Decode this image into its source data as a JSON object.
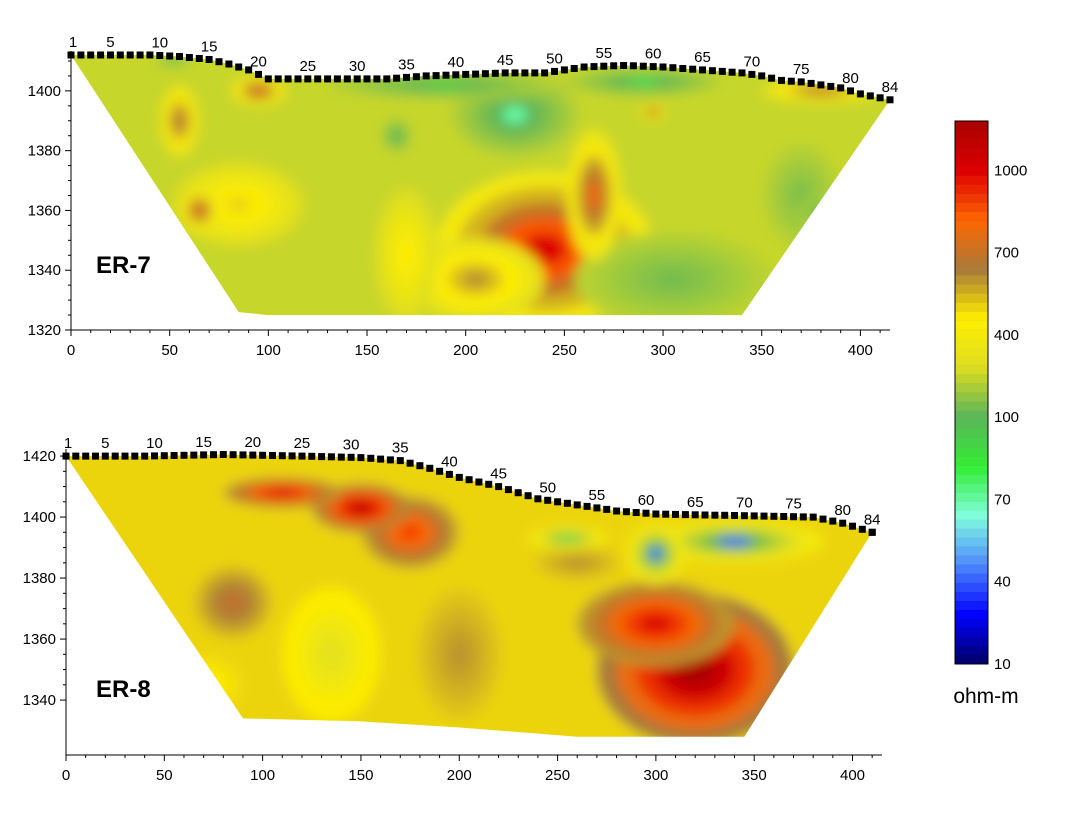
{
  "chart_data": [
    {
      "type": "heatmap",
      "label": "ER-7",
      "x_ticks": [
        "0",
        "50",
        "100",
        "150",
        "200",
        "250",
        "300",
        "350",
        "400"
      ],
      "y_ticks": [
        "1320",
        "1340",
        "1360",
        "1380",
        "1400"
      ],
      "xlim": [
        0,
        415
      ],
      "ylim": [
        1320,
        1412
      ],
      "electrode_labels": [
        "1",
        "5",
        "10",
        "15",
        "20",
        "25",
        "30",
        "35",
        "40",
        "45",
        "50",
        "55",
        "60",
        "65",
        "70",
        "75",
        "80",
        "84"
      ],
      "electrode_spacing": 5,
      "surface": [
        [
          0,
          1412
        ],
        [
          20,
          1412
        ],
        [
          40,
          1412
        ],
        [
          55,
          1411.5
        ],
        [
          70,
          1410.5
        ],
        [
          80,
          1409
        ],
        [
          90,
          1407
        ],
        [
          100,
          1404
        ],
        [
          120,
          1404
        ],
        [
          140,
          1404
        ],
        [
          160,
          1404
        ],
        [
          180,
          1405
        ],
        [
          200,
          1405.5
        ],
        [
          220,
          1406
        ],
        [
          240,
          1406
        ],
        [
          250,
          1407
        ],
        [
          260,
          1408
        ],
        [
          280,
          1408.5
        ],
        [
          300,
          1408
        ],
        [
          310,
          1407.5
        ],
        [
          320,
          1407
        ],
        [
          340,
          1406
        ],
        [
          350,
          1405
        ],
        [
          360,
          1403.5
        ],
        [
          370,
          1403
        ],
        [
          380,
          1402
        ],
        [
          390,
          1401
        ],
        [
          400,
          1399
        ],
        [
          415,
          1397
        ]
      ],
      "bottom": [
        [
          0,
          1412
        ],
        [
          85,
          1326
        ],
        [
          100,
          1325
        ],
        [
          150,
          1325
        ],
        [
          200,
          1325
        ],
        [
          250,
          1325
        ],
        [
          300,
          1325
        ],
        [
          340,
          1325
        ],
        [
          415,
          1397
        ]
      ],
      "features": [
        {
          "x": 240,
          "z": 1347,
          "rx": 55,
          "rz": 26,
          "value": 1000
        },
        {
          "x": 265,
          "z": 1365,
          "rx": 14,
          "rz": 22,
          "value": 800
        },
        {
          "x": 205,
          "z": 1337,
          "rx": 35,
          "rz": 14,
          "value": 600
        },
        {
          "x": 170,
          "z": 1345,
          "rx": 16,
          "rz": 22,
          "value": 450
        },
        {
          "x": 55,
          "z": 1390,
          "rx": 10,
          "rz": 12,
          "value": 700
        },
        {
          "x": 85,
          "z": 1362,
          "rx": 33,
          "rz": 14,
          "value": 500
        },
        {
          "x": 65,
          "z": 1360,
          "rx": 10,
          "rz": 7,
          "value": 800
        },
        {
          "x": 95,
          "z": 1400,
          "rx": 14,
          "rz": 5,
          "value": 800
        },
        {
          "x": 380,
          "z": 1400,
          "rx": 30,
          "rz": 4,
          "value": 700
        },
        {
          "x": 295,
          "z": 1393,
          "rx": 6,
          "rz": 3,
          "value": 800
        },
        {
          "x": 225,
          "z": 1392,
          "rx": 32,
          "rz": 14,
          "value": 70
        },
        {
          "x": 190,
          "z": 1402,
          "rx": 60,
          "rz": 5,
          "value": 90
        },
        {
          "x": 290,
          "z": 1403,
          "rx": 40,
          "rz": 5,
          "value": 80
        },
        {
          "x": 165,
          "z": 1385,
          "rx": 8,
          "rz": 6,
          "value": 100
        },
        {
          "x": 378,
          "z": 1360,
          "rx": 8,
          "rz": 5,
          "value": 110
        },
        {
          "x": 305,
          "z": 1337,
          "rx": 50,
          "rz": 16,
          "value": 140
        },
        {
          "x": 370,
          "z": 1365,
          "rx": 20,
          "rz": 18,
          "value": 150
        },
        {
          "x": 52,
          "z": 1410,
          "rx": 10,
          "rz": 2,
          "value": 90
        }
      ],
      "background_value": 250
    },
    {
      "type": "heatmap",
      "label": "ER-8",
      "x_ticks": [
        "0",
        "50",
        "100",
        "150",
        "200",
        "250",
        "300",
        "350",
        "400"
      ],
      "y_ticks": [
        "1340",
        "1360",
        "1380",
        "1400",
        "1420"
      ],
      "xlim": [
        0,
        415
      ],
      "ylim": [
        1322,
        1421
      ],
      "electrode_labels": [
        "1",
        "5",
        "10",
        "15",
        "20",
        "25",
        "30",
        "35",
        "40",
        "45",
        "50",
        "55",
        "60",
        "65",
        "70",
        "75",
        "80",
        "84"
      ],
      "electrode_spacing": 5,
      "surface": [
        [
          0,
          1420
        ],
        [
          40,
          1420
        ],
        [
          80,
          1420.5
        ],
        [
          120,
          1420
        ],
        [
          150,
          1419.5
        ],
        [
          170,
          1418.5
        ],
        [
          185,
          1416
        ],
        [
          200,
          1413
        ],
        [
          220,
          1410
        ],
        [
          240,
          1406
        ],
        [
          260,
          1404
        ],
        [
          280,
          1402
        ],
        [
          300,
          1401
        ],
        [
          340,
          1400.5
        ],
        [
          380,
          1400
        ],
        [
          395,
          1398
        ],
        [
          410,
          1395
        ]
      ],
      "bottom": [
        [
          0,
          1420
        ],
        [
          90,
          1334
        ],
        [
          150,
          1333
        ],
        [
          200,
          1331
        ],
        [
          240,
          1329
        ],
        [
          260,
          1328
        ],
        [
          300,
          1328
        ],
        [
          345,
          1328
        ],
        [
          410,
          1395
        ]
      ],
      "features": [
        {
          "x": 320,
          "z": 1350,
          "rx": 50,
          "rz": 25,
          "value": 1200
        },
        {
          "x": 300,
          "z": 1365,
          "rx": 40,
          "rz": 14,
          "value": 1000
        },
        {
          "x": 150,
          "z": 1403,
          "rx": 25,
          "rz": 8,
          "value": 1100
        },
        {
          "x": 110,
          "z": 1408,
          "rx": 30,
          "rz": 5,
          "value": 1000
        },
        {
          "x": 175,
          "z": 1395,
          "rx": 25,
          "rz": 12,
          "value": 900
        },
        {
          "x": 85,
          "z": 1372,
          "rx": 20,
          "rz": 12,
          "value": 700
        },
        {
          "x": 200,
          "z": 1355,
          "rx": 22,
          "rz": 22,
          "value": 600
        },
        {
          "x": 135,
          "z": 1355,
          "rx": 25,
          "rz": 22,
          "value": 320
        },
        {
          "x": 260,
          "z": 1385,
          "rx": 22,
          "rz": 6,
          "value": 600
        },
        {
          "x": 300,
          "z": 1388,
          "rx": 15,
          "rz": 10,
          "value": 40
        },
        {
          "x": 340,
          "z": 1392,
          "rx": 45,
          "rz": 7,
          "value": 40
        },
        {
          "x": 255,
          "z": 1393,
          "rx": 20,
          "rz": 4,
          "value": 80
        },
        {
          "x": 70,
          "z": 1345,
          "rx": 20,
          "rz": 10,
          "value": 450
        }
      ],
      "background_value": 500
    }
  ],
  "colorbar": {
    "tick_labels": [
      "10",
      "40",
      "70",
      "100",
      "400",
      "700",
      "1000"
    ],
    "tick_values": [
      10,
      40,
      70,
      100,
      400,
      700,
      1000
    ],
    "vmin": 10,
    "vmax": 1180,
    "unit": "ohm-m"
  },
  "colors": {
    "palette": [
      "#000066",
      "#0000ff",
      "#4d88ff",
      "#80ffdd",
      "#33ee33",
      "#5ab55a",
      "#dddd22",
      "#ffee00",
      "#a87a3a",
      "#ff6600",
      "#dd0000",
      "#aa0000"
    ]
  }
}
